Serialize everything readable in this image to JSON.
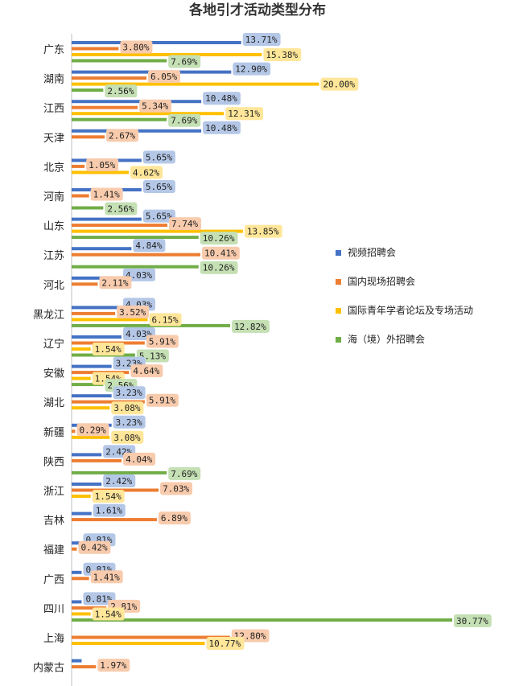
{
  "chart_data": {
    "type": "bar",
    "orientation": "horizontal",
    "title": "各地引才活动类型分布",
    "xlabel": "",
    "ylabel": "",
    "xlim": [
      0,
      31
    ],
    "grid": false,
    "legend_position": "right",
    "categories": [
      "广东",
      "湖南",
      "江西",
      "天津",
      "北京",
      "河南",
      "山东",
      "江苏",
      "河北",
      "黑龙江",
      "辽宁",
      "安徽",
      "湖北",
      "新疆",
      "陕西",
      "浙江",
      "吉林",
      "福建",
      "广西",
      "四川",
      "上海",
      "内蒙古"
    ],
    "series": [
      {
        "name": "视频招聘会",
        "color": "#4472C4",
        "label_bg": "#B4C7E7",
        "values": [
          13.71,
          12.9,
          10.48,
          10.48,
          5.65,
          5.65,
          5.65,
          4.84,
          4.03,
          4.03,
          4.03,
          3.23,
          3.23,
          3.23,
          2.42,
          2.42,
          1.61,
          0.81,
          0.81,
          0.81,
          null,
          0.81
        ],
        "labels": [
          "13.71%",
          "12.90%",
          "10.48%",
          "10.48%",
          "5.65%",
          "5.65%",
          "5.65%",
          "4.84%",
          "4.03%",
          "4.03%",
          "4.03%",
          "3.23%",
          "3.23%",
          "3.23%",
          "2.42%",
          "2.42%",
          "1.61%",
          "0.81%",
          "0.81%",
          "0.81%",
          "",
          ""
        ]
      },
      {
        "name": "国内现场招聘会",
        "color": "#ED7D31",
        "label_bg": "#F8CBAD",
        "values": [
          3.8,
          6.05,
          5.34,
          2.67,
          1.05,
          1.41,
          7.74,
          10.41,
          2.11,
          3.52,
          5.91,
          4.64,
          5.91,
          0.29,
          4.04,
          7.03,
          6.89,
          0.42,
          1.41,
          2.81,
          12.8,
          1.97
        ],
        "labels": [
          "3.80%",
          "6.05%",
          "5.34%",
          "2.67%",
          "1.05%",
          "1.41%",
          "7.74%",
          "10.41%",
          "2.11%",
          "3.52%",
          "5.91%",
          "4.64%",
          "5.91%",
          "0.29%",
          "4.04%",
          "7.03%",
          "6.89%",
          "0.42%",
          "1.41%",
          "2.81%",
          "12.80%",
          "1.97%"
        ]
      },
      {
        "name": "国际青年学者论坛及专场活动",
        "color": "#FFC000",
        "label_bg": "#FFE699",
        "values": [
          15.38,
          20.0,
          12.31,
          null,
          4.62,
          null,
          13.85,
          null,
          null,
          6.15,
          1.54,
          1.54,
          3.08,
          3.08,
          null,
          1.54,
          null,
          null,
          null,
          1.54,
          10.77,
          null
        ],
        "labels": [
          "15.38%",
          "20.00%",
          "12.31%",
          "",
          "4.62%",
          "",
          "13.85%",
          "",
          "",
          "6.15%",
          "1.54%",
          "1.54%",
          "3.08%",
          "3.08%",
          "",
          "1.54%",
          "",
          "",
          "",
          "1.54%",
          "10.77%",
          ""
        ]
      },
      {
        "name": "海（境）外招聘会",
        "color": "#70AD47",
        "label_bg": "#C5E0B4",
        "values": [
          7.69,
          2.56,
          7.69,
          null,
          null,
          2.56,
          10.26,
          10.26,
          null,
          12.82,
          5.13,
          2.56,
          null,
          null,
          7.69,
          null,
          null,
          null,
          null,
          30.77,
          null,
          null
        ],
        "labels": [
          "7.69%",
          "2.56%",
          "7.69%",
          "",
          "",
          "2.56%",
          "10.26%",
          "10.26%",
          "",
          "12.82%",
          "5.13%",
          "2.56%",
          "",
          "",
          "7.69%",
          "",
          "",
          "",
          "",
          "30.77%",
          "",
          ""
        ]
      }
    ]
  }
}
